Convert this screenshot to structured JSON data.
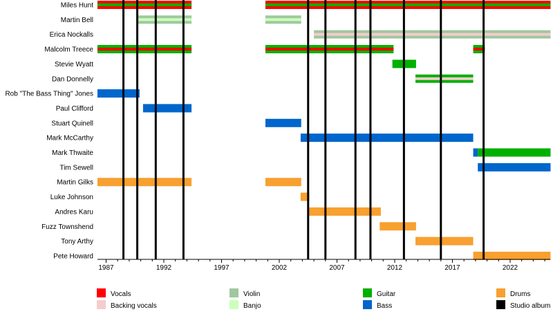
{
  "chart_data": {
    "type": "timeline",
    "xlim": [
      1986.25,
      2025.5
    ],
    "ticks": [
      1987,
      1992,
      1997,
      2002,
      2007,
      2012,
      2017,
      2022
    ],
    "colors": {
      "Vocals": "#ff0000",
      "Backing vocals": "#f4cccc",
      "Violin": "#9fc89f",
      "Banjo": "#ccffbb",
      "Guitar": "#00b000",
      "Bass": "#0066cc",
      "Drums": "#f8a030",
      "Studio album": "#000000"
    },
    "legend": [
      "Vocals",
      "Backing vocals",
      "Violin",
      "Banjo",
      "Guitar",
      "Bass",
      "Drums",
      "Studio album"
    ],
    "albums": [
      1988.5,
      1989.7,
      1991.3,
      1993.7,
      2004.5,
      2006.0,
      2008.6,
      2009.9,
      2012.8,
      2016.0,
      2019.7
    ],
    "members": [
      {
        "name": "Miles Hunt",
        "bars": [
          {
            "from": 1986.25,
            "to": 1994.4,
            "main": "Vocals",
            "inner": "Guitar"
          },
          {
            "from": 2000.8,
            "to": 2025.5,
            "main": "Vocals",
            "inner": "Guitar"
          }
        ]
      },
      {
        "name": "Martin Bell",
        "bars": [
          {
            "from": 1989.7,
            "to": 1994.4,
            "main": "Violin",
            "inner": "Banjo"
          },
          {
            "from": 2000.8,
            "to": 2003.9,
            "main": "Violin",
            "inner": "Banjo"
          }
        ]
      },
      {
        "name": "Erica Nockalls",
        "bars": [
          {
            "from": 2005.0,
            "to": 2025.5,
            "main": "Violin",
            "inner": "Backing vocals"
          }
        ]
      },
      {
        "name": "Malcolm Treece",
        "bars": [
          {
            "from": 1986.25,
            "to": 1994.4,
            "main": "Guitar",
            "inner": "Vocals"
          },
          {
            "from": 2000.8,
            "to": 2011.9,
            "main": "Guitar",
            "inner": "Vocals"
          },
          {
            "from": 2018.8,
            "to": 2019.8,
            "main": "Guitar",
            "inner": "Vocals"
          }
        ]
      },
      {
        "name": "Stevie Wyatt",
        "bars": [
          {
            "from": 2011.8,
            "to": 2013.85,
            "main": "Guitar"
          }
        ]
      },
      {
        "name": "Dan Donnelly",
        "bars": [
          {
            "from": 2013.8,
            "to": 2018.8,
            "main": "Guitar",
            "inner": "Backing vocals"
          }
        ]
      },
      {
        "name": "Rob \"The Bass Thing\" Jones",
        "bars": [
          {
            "from": 1986.25,
            "to": 1989.9,
            "main": "Bass"
          }
        ]
      },
      {
        "name": "Paul Clifford",
        "bars": [
          {
            "from": 1990.2,
            "to": 1994.4,
            "main": "Bass"
          }
        ]
      },
      {
        "name": "Stuart Quinell",
        "bars": [
          {
            "from": 2000.8,
            "to": 2003.9,
            "main": "Bass"
          }
        ]
      },
      {
        "name": "Mark McCarthy",
        "bars": [
          {
            "from": 2003.85,
            "to": 2018.8,
            "main": "Bass"
          }
        ]
      },
      {
        "name": "Mark Thwaite",
        "bars": [
          {
            "from": 2018.8,
            "to": 2019.2,
            "main": "Bass"
          },
          {
            "from": 2019.2,
            "to": 2025.5,
            "main": "Guitar"
          }
        ]
      },
      {
        "name": "Tim Sewell",
        "bars": [
          {
            "from": 2019.2,
            "to": 2025.5,
            "main": "Bass"
          }
        ]
      },
      {
        "name": "Martin Gilks",
        "bars": [
          {
            "from": 1986.25,
            "to": 1994.4,
            "main": "Drums"
          },
          {
            "from": 2000.8,
            "to": 2003.9,
            "main": "Drums"
          }
        ]
      },
      {
        "name": "Luke Johnson",
        "bars": [
          {
            "from": 2003.85,
            "to": 2004.6,
            "main": "Drums"
          }
        ]
      },
      {
        "name": "Andres Karu",
        "bars": [
          {
            "from": 2004.5,
            "to": 2010.8,
            "main": "Drums"
          }
        ]
      },
      {
        "name": "Fuzz Townshend",
        "bars": [
          {
            "from": 2010.7,
            "to": 2013.85,
            "main": "Drums"
          }
        ]
      },
      {
        "name": "Tony Arthy",
        "bars": [
          {
            "from": 2013.8,
            "to": 2018.8,
            "main": "Drums"
          }
        ]
      },
      {
        "name": "Pete Howard",
        "bars": [
          {
            "from": 2018.8,
            "to": 2025.5,
            "main": "Drums"
          }
        ]
      }
    ]
  }
}
